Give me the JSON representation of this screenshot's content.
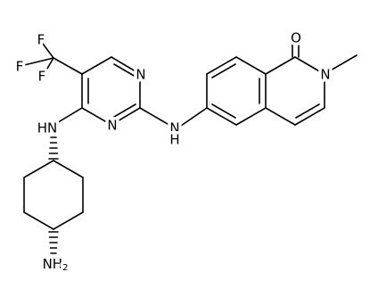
{
  "atoms": {
    "fluorine_top": "F",
    "fluorine_left": "F",
    "fluorine_low": "F",
    "pyrimidine_n1": "N",
    "pyrimidine_n3": "N",
    "amine_left": "HN",
    "amine_right_n": "N",
    "amine_right_h": "H",
    "carbonyl_o": "O",
    "lactam_n": "N",
    "amino": {
      "text": "NH",
      "subscript": "2"
    }
  }
}
